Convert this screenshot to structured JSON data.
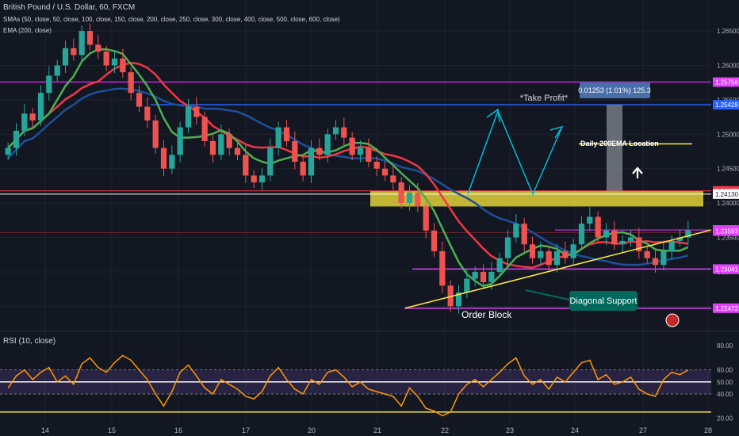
{
  "header": {
    "symbol_line": "British Pound / U.S. Dollar, 60, FXCM",
    "sma_line": "SMAs (50, close, 50, close, 100, close, 150, close, 200, close, 250, close, 300, close, 400, close, 500, close, 600, close)",
    "ema_line": "EMA (200, close)"
  },
  "rsi": {
    "title": "RSI (10, close)",
    "levels": [
      80.0,
      60.0,
      50.0,
      40.0,
      20.0
    ],
    "level_labels": [
      "80.00",
      "60.00",
      "50.00",
      "40.00",
      "20.00"
    ]
  },
  "annotations": {
    "take_profit": "*Take Profit*",
    "measure_box": "0.01253 (1.01%) 125.3",
    "daily_ema": "Daily 200EMA Location",
    "diagonal_support": "Diagonal Support",
    "order_block": "Order Block"
  },
  "colors": {
    "background": "#131722",
    "up_candle": "#26a69a",
    "down_candle": "#ef5350",
    "sma_green": "#4caf50",
    "sma_red": "#f23645",
    "ema_blue": "#1e4f9c",
    "magenta_line": "#e040fb",
    "purple_line": "#9c27b0",
    "yellow_line": "#ffeb3b",
    "rsi_line": "#ff9800"
  },
  "chart_data": {
    "type": "candlestick",
    "price_axis_ticks": [
      "1.26500",
      "1.26000",
      "1.25500",
      "1.25000",
      "1.24500",
      "1.24000",
      "1.23500",
      "1.23000",
      "1.22500"
    ],
    "price_range": [
      1.2217,
      1.2695
    ],
    "date_ticks": [
      "14",
      "15",
      "16",
      "17",
      "20",
      "21",
      "22",
      "23",
      "24",
      "27",
      "28"
    ],
    "price_labels": [
      {
        "value": 1.25758,
        "text": "1.25758",
        "color": "#e040fb"
      },
      {
        "value": 1.25428,
        "text": "1.25428",
        "color": "#2962ff"
      },
      {
        "value": 1.24177,
        "text": "1.24177",
        "color": "#f23645"
      },
      {
        "value": 1.2413,
        "text": "1.24130",
        "color": "#ffffff"
      },
      {
        "value": 1.23609,
        "text": "1.23609",
        "color": "#e040fb"
      },
      {
        "value": 1.23593,
        "text": "1.23593",
        "color": "#e040fb"
      },
      {
        "value": 1.23041,
        "text": "1.23041",
        "color": "#e040fb"
      },
      {
        "value": 1.22472,
        "text": "1.22472",
        "color": "#e040fb"
      }
    ],
    "closes": [
      1.248,
      1.2505,
      1.253,
      1.252,
      1.256,
      1.2585,
      1.26,
      1.2625,
      1.2615,
      1.265,
      1.263,
      1.262,
      1.26,
      1.261,
      1.259,
      1.256,
      1.254,
      1.252,
      1.248,
      1.245,
      1.247,
      1.251,
      1.254,
      1.2525,
      1.249,
      1.247,
      1.25,
      1.248,
      1.247,
      1.244,
      1.243,
      1.244,
      1.248,
      1.251,
      1.249,
      1.246,
      1.244,
      1.248,
      1.247,
      1.25,
      1.251,
      1.2495,
      1.247,
      1.248,
      1.246,
      1.245,
      1.244,
      1.243,
      1.24,
      1.2415,
      1.2395,
      1.236,
      1.233,
      1.228,
      1.225,
      1.227,
      1.229,
      1.23,
      1.2285,
      1.23,
      1.232,
      1.235,
      1.237,
      1.234,
      1.232,
      1.233,
      1.231,
      1.233,
      1.232,
      1.234,
      1.237,
      1.238,
      1.235,
      1.236,
      1.234,
      1.2345,
      1.235,
      1.233,
      1.232,
      1.231,
      1.233,
      1.2345,
      1.235,
      1.236
    ],
    "rsi_values": [
      45,
      55,
      60,
      52,
      58,
      62,
      50,
      55,
      48,
      65,
      70,
      62,
      58,
      66,
      72,
      68,
      60,
      52,
      40,
      30,
      42,
      58,
      64,
      55,
      45,
      40,
      52,
      48,
      44,
      38,
      36,
      42,
      55,
      62,
      52,
      44,
      40,
      52,
      48,
      58,
      60,
      54,
      46,
      50,
      44,
      42,
      40,
      38,
      30,
      45,
      38,
      28,
      26,
      22,
      25,
      40,
      48,
      52,
      46,
      52,
      58,
      65,
      70,
      55,
      48,
      52,
      44,
      54,
      50,
      58,
      66,
      68,
      52,
      56,
      48,
      50,
      54,
      44,
      40,
      38,
      52,
      58,
      56,
      60
    ],
    "rsi_range": [
      15,
      90
    ]
  }
}
